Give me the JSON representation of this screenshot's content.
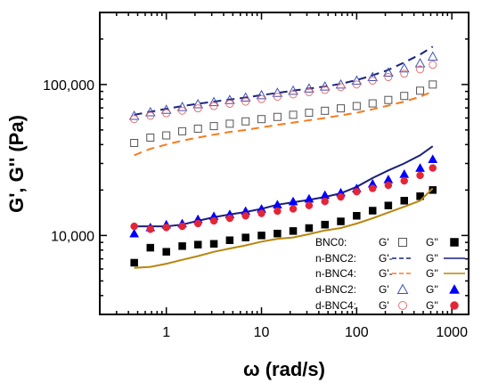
{
  "chart_data": {
    "type": "scatter",
    "title": "",
    "xlabel": "ω (rad/s)",
    "ylabel": "G', G'' (Pa)",
    "x_scale": "log",
    "y_scale": "log",
    "xlim": [
      0.2,
      1500
    ],
    "ylim": [
      3000,
      300000
    ],
    "x_ticks": [
      1,
      10,
      100,
      1000
    ],
    "x_tick_labels": [
      "1",
      "10",
      "100",
      "1000"
    ],
    "y_ticks": [
      10000,
      100000
    ],
    "y_tick_labels": [
      "10,000",
      "100,000"
    ],
    "grid": false,
    "legend": {
      "placement": "bottom-right",
      "rows": [
        {
          "sample": "BNC0:",
          "g1": "G'",
          "g2": "G''"
        },
        {
          "sample": "n-BNC2:",
          "g1": "G'-",
          "g2": "G''"
        },
        {
          "sample": "n-BNC4:",
          "g1": "G'-",
          "g2": "G''"
        },
        {
          "sample": "d-BNC2:",
          "g1": "G'",
          "g2": "G''"
        },
        {
          "sample": "d-BNC4:",
          "g1": "G'",
          "g2": "G''"
        }
      ]
    },
    "x": [
      0.46,
      0.68,
      1.0,
      1.47,
      2.15,
      3.16,
      4.64,
      6.81,
      10.0,
      14.7,
      21.5,
      31.6,
      46.4,
      68.1,
      100,
      147,
      215,
      316,
      464,
      630
    ],
    "series": [
      {
        "key": "BNC0_Gp",
        "sample": "BNC0",
        "modulus": "G'",
        "style": "open-square",
        "color": "#555555",
        "values": [
          41000,
          44500,
          46000,
          49000,
          51000,
          53000,
          55000,
          57000,
          59000,
          61000,
          63000,
          65000,
          67000,
          69500,
          72000,
          75000,
          79000,
          84000,
          91000,
          100000
        ]
      },
      {
        "key": "BNC0_Gpp",
        "sample": "BNC0",
        "modulus": "G''",
        "style": "filled-square",
        "color": "#000000",
        "values": [
          6600,
          8300,
          7800,
          8500,
          8700,
          8800,
          9300,
          9700,
          10000,
          10300,
          10700,
          11200,
          11800,
          12400,
          13500,
          14600,
          15800,
          17000,
          18200,
          20000
        ]
      },
      {
        "key": "nBNC2_Gp",
        "sample": "n-BNC2",
        "modulus": "G'",
        "style": "dash",
        "color": "#1a237e",
        "values": [
          63000,
          66000,
          69000,
          72000,
          74500,
          77000,
          79500,
          82000,
          85000,
          88000,
          91000,
          94000,
          97000,
          101000,
          107000,
          115000,
          125000,
          140000,
          158000,
          178000
        ]
      },
      {
        "key": "nBNC2_Gpp",
        "sample": "n-BNC2",
        "modulus": "G''",
        "style": "line",
        "color": "#1a1f7a",
        "values": [
          11500,
          11500,
          11500,
          11800,
          12500,
          13200,
          13800,
          14300,
          15000,
          16000,
          16600,
          17200,
          18000,
          19000,
          21000,
          24000,
          27000,
          30000,
          34000,
          39000
        ]
      },
      {
        "key": "nBNC4_Gp",
        "sample": "n-BNC4",
        "modulus": "G'",
        "style": "dash",
        "color": "#f57c20",
        "values": [
          34000,
          37500,
          40000,
          42500,
          44500,
          46500,
          48500,
          50000,
          52000,
          54000,
          56000,
          58000,
          60000,
          62500,
          65000,
          68500,
          72500,
          77000,
          83000,
          90000
        ]
      },
      {
        "key": "nBNC4_Gpp",
        "sample": "n-BNC4",
        "modulus": "G''",
        "style": "line",
        "color": "#b8860b",
        "values": [
          6100,
          6200,
          6500,
          6900,
          7300,
          7800,
          8200,
          8600,
          9100,
          9500,
          9700,
          10200,
          10800,
          11200,
          12000,
          13000,
          14200,
          15500,
          17000,
          20500
        ]
      },
      {
        "key": "dBNC2_Gp",
        "sample": "d-BNC2",
        "modulus": "G'",
        "style": "open-triangle",
        "color": "#3f51b5",
        "values": [
          62000,
          65500,
          68000,
          71000,
          74000,
          76500,
          79000,
          82000,
          85000,
          88000,
          91000,
          94000,
          97000,
          100000,
          106000,
          112000,
          120000,
          128000,
          138000,
          153000
        ]
      },
      {
        "key": "dBNC2_Gpp",
        "sample": "d-BNC2",
        "modulus": "G''",
        "style": "filled-triangle",
        "color": "#0000ff",
        "values": [
          10300,
          11300,
          11800,
          12000,
          12800,
          13400,
          13800,
          14500,
          15000,
          16000,
          16800,
          17500,
          18500,
          19200,
          20500,
          22000,
          23500,
          25500,
          28000,
          32000
        ]
      },
      {
        "key": "dBNC4_Gp",
        "sample": "d-BNC4",
        "modulus": "G'",
        "style": "open-circle",
        "color": "#e57373",
        "values": [
          59000,
          62000,
          64500,
          67000,
          69500,
          72000,
          74500,
          77000,
          80000,
          83000,
          86000,
          89000,
          92000,
          96000,
          100000,
          106000,
          112000,
          118000,
          126000,
          135000
        ]
      },
      {
        "key": "dBNC4_Gpp",
        "sample": "d-BNC4",
        "modulus": "G''",
        "style": "filled-circle",
        "color": "#e32636",
        "values": [
          11500,
          11000,
          11300,
          11500,
          12000,
          12500,
          13000,
          13500,
          14000,
          14500,
          15000,
          15800,
          16800,
          18000,
          19500,
          20500,
          21500,
          23000,
          25000,
          28000
        ]
      }
    ]
  }
}
